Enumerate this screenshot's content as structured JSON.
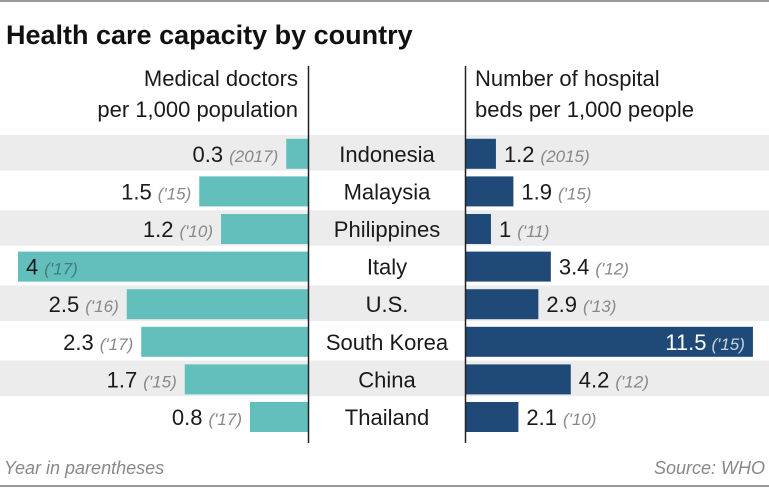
{
  "chart_data": {
    "type": "bar",
    "title": "Health care capacity by country",
    "categories": [
      "Indonesia",
      "Malaysia",
      "Philippines",
      "Italy",
      "U.S.",
      "South Korea",
      "China",
      "Thailand"
    ],
    "series": [
      {
        "name": "Medical doctors per 1,000 population",
        "name_lines": [
          "Medical doctors",
          "per 1,000 population"
        ],
        "values": [
          0.3,
          1.5,
          1.2,
          4,
          2.5,
          2.3,
          1.7,
          0.8
        ],
        "labels": [
          "0.3",
          "1.5",
          "1.2",
          "4",
          "2.5",
          "2.3",
          "1.7",
          "0.8"
        ],
        "years": [
          "(2017)",
          "('15)",
          "('10)",
          "('17)",
          "('16)",
          "('17)",
          "('15)",
          "('17)"
        ],
        "color": "#62bfbc",
        "direction": "left"
      },
      {
        "name": "Number of hospital beds per 1,000 people",
        "name_lines": [
          "Number of hospital",
          "beds per 1,000 people"
        ],
        "values": [
          1.2,
          1.9,
          1,
          3.4,
          2.9,
          11.5,
          4.2,
          2.1
        ],
        "labels": [
          "1.2",
          "1.9",
          "1",
          "3.4",
          "2.9",
          "11.5",
          "4.2",
          "2.1"
        ],
        "years": [
          "(2015)",
          "('15)",
          "('11)",
          "('12)",
          "('13)",
          "('15)",
          "('12)",
          "('10)"
        ],
        "color": "#1f4a77",
        "direction": "right"
      }
    ],
    "row_band_color": "#ececec",
    "grid": false,
    "note": "Year in parentheses",
    "source": "Source: WHO"
  }
}
